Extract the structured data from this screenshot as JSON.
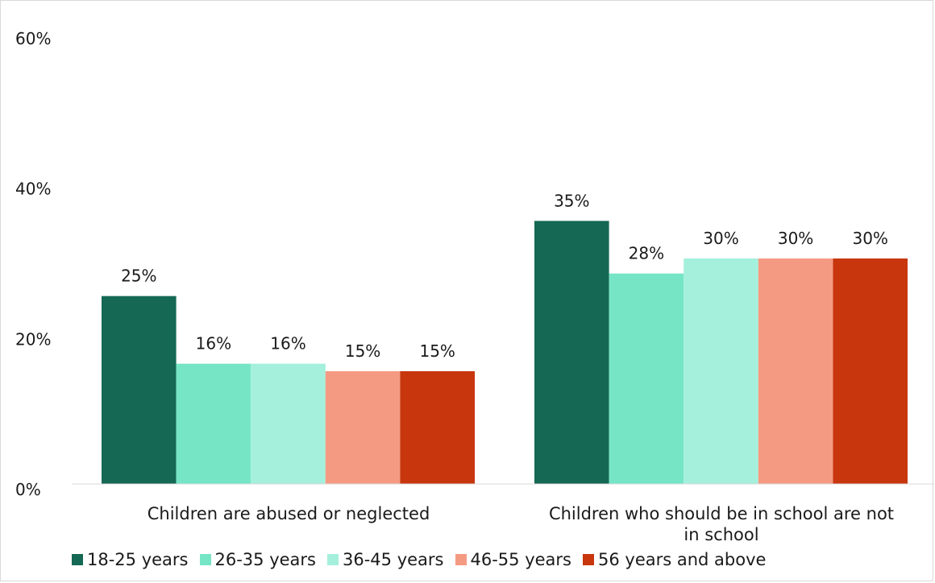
{
  "chart_data": {
    "type": "bar",
    "categories": [
      "Children are abused or neglected",
      "Children who should be in school are not in school"
    ],
    "category_lines": [
      [
        "Children are abused or neglected"
      ],
      [
        "Children who should be in school are not",
        "in school"
      ]
    ],
    "series": [
      {
        "name": "18-25 years",
        "values": [
          25,
          35
        ],
        "labels": [
          "25%",
          "35%"
        ],
        "color": "#156853"
      },
      {
        "name": "26-35 years",
        "values": [
          16,
          28
        ],
        "labels": [
          "16%",
          "28%"
        ],
        "color": "#76e5c6"
      },
      {
        "name": "36-45 years",
        "values": [
          16,
          30
        ],
        "labels": [
          "16%",
          "30%"
        ],
        "color": "#a5f0dc"
      },
      {
        "name": "46-55 years",
        "values": [
          15,
          30
        ],
        "labels": [
          "15%",
          "30%"
        ],
        "color": "#f59a82"
      },
      {
        "name": "56 years and above",
        "values": [
          15,
          30
        ],
        "labels": [
          "15%",
          "30%"
        ],
        "color": "#c8360e"
      }
    ],
    "yticks": [
      0,
      20,
      40,
      60
    ],
    "ytick_labels": [
      "0%",
      "20%",
      "40%",
      "60%"
    ],
    "ylim": [
      0,
      60
    ],
    "title": "",
    "xlabel": "",
    "ylabel": "",
    "grid": false,
    "legend_position": "bottom"
  }
}
